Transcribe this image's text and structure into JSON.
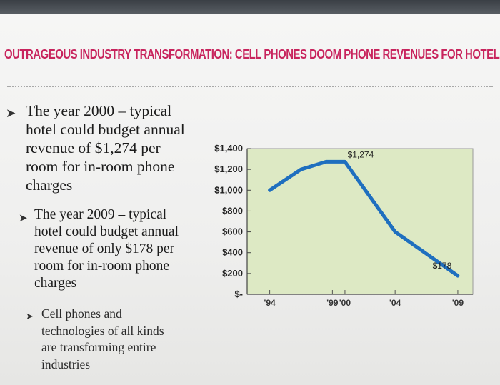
{
  "slide": {
    "title": "OUTRAGEOUS INDUSTRY TRANSFORMATION: CELL PHONES DOOM PHONE REVENUES FOR HOTELS",
    "bullets": [
      {
        "arrow": "➤",
        "lines": [
          "The year 2000 – typical",
          "hotel could budget annual",
          "revenue of $1,274 per",
          "room for in-room phone",
          "charges"
        ]
      },
      {
        "arrow": "➤",
        "lines": [
          "The year 2009 – typical",
          "hotel could budget annual",
          "revenue of only $178 per",
          "room for in-room phone",
          "charges"
        ]
      },
      {
        "arrow": "➤",
        "lines": [
          "Cell phones and",
          "technologies of all kinds",
          "are transforming entire",
          "industries"
        ]
      }
    ]
  },
  "colors": {
    "title": "#c8245d",
    "plot_bg": "#dde9c4",
    "line": "#1f6fbf"
  },
  "chart_data": {
    "type": "line",
    "title": "",
    "xlabel": "",
    "ylabel": "",
    "categories": [
      "'94",
      "'99",
      "'00",
      "'04",
      "'09"
    ],
    "x": [
      1994,
      1996.5,
      1998.5,
      1999,
      2000,
      2004,
      2009
    ],
    "series": [
      {
        "values": [
          1000,
          1200,
          1274,
          1274,
          1274,
          600,
          178
        ]
      }
    ],
    "y_tick_labels": [
      "$1,400",
      "$1,200",
      "$1,000",
      "$800",
      "$600",
      "$400",
      "$200",
      "$-"
    ],
    "y_tick_values": [
      1400,
      1200,
      1000,
      800,
      600,
      400,
      200,
      0
    ],
    "ylim": [
      0,
      1400
    ],
    "x_tick_labels": [
      "'94",
      "'99",
      "'00",
      "'04",
      "'09"
    ],
    "x_tick_values": [
      1994,
      1999,
      2000,
      2004,
      2009
    ],
    "data_labels": [
      {
        "x": 2000,
        "y": 1274,
        "text": "$1,274"
      },
      {
        "x": 2009,
        "y": 178,
        "text": "$178"
      }
    ],
    "grid": false
  }
}
